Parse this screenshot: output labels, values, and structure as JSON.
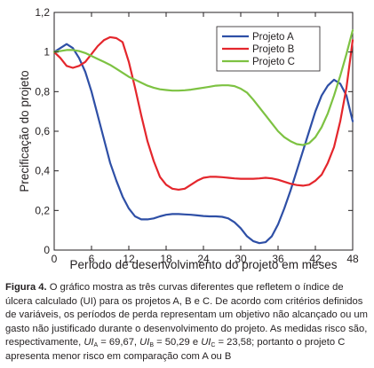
{
  "chart_data": {
    "type": "line",
    "xlabel": "Período de desenvolvimento do projeto em meses",
    "ylabel": "Precificação do projeto",
    "xlim": [
      0,
      48
    ],
    "ylim": [
      0,
      1.2
    ],
    "xticks": [
      0,
      6,
      12,
      18,
      24,
      30,
      36,
      42,
      48
    ],
    "yticks": [
      0,
      0.2,
      0.4,
      0.6,
      0.8,
      1,
      1.2
    ],
    "xtick_labels": [
      "0",
      "6",
      "12",
      "18",
      "24",
      "30",
      "36",
      "42",
      "48"
    ],
    "ytick_labels": [
      "0",
      "0,2",
      "0,4",
      "0,6",
      "0,8",
      "1",
      "1,2"
    ],
    "grid": false,
    "legend_position": "top-right",
    "series": [
      {
        "name": "Projeto A",
        "color": "#2e4fa6",
        "x": [
          0,
          1,
          2,
          3,
          4,
          5,
          6,
          7,
          8,
          9,
          10,
          11,
          12,
          13,
          14,
          15,
          16,
          17,
          18,
          19,
          20,
          21,
          22,
          23,
          24,
          25,
          26,
          27,
          28,
          29,
          30,
          31,
          32,
          33,
          34,
          35,
          36,
          37,
          38,
          39,
          40,
          41,
          42,
          43,
          44,
          45,
          46,
          47,
          48
        ],
        "y": [
          1.0,
          1.02,
          1.04,
          1.02,
          0.97,
          0.9,
          0.8,
          0.68,
          0.56,
          0.44,
          0.35,
          0.27,
          0.21,
          0.17,
          0.155,
          0.155,
          0.16,
          0.17,
          0.178,
          0.182,
          0.182,
          0.18,
          0.178,
          0.175,
          0.172,
          0.17,
          0.17,
          0.168,
          0.16,
          0.14,
          0.11,
          0.07,
          0.045,
          0.035,
          0.04,
          0.07,
          0.13,
          0.21,
          0.3,
          0.4,
          0.5,
          0.6,
          0.7,
          0.78,
          0.83,
          0.86,
          0.84,
          0.78,
          0.65
        ]
      },
      {
        "name": "Projeto B",
        "color": "#e4262c",
        "x": [
          0,
          1,
          2,
          3,
          4,
          5,
          6,
          7,
          8,
          9,
          10,
          11,
          12,
          13,
          14,
          15,
          16,
          17,
          18,
          19,
          20,
          21,
          22,
          23,
          24,
          25,
          26,
          27,
          28,
          29,
          30,
          31,
          32,
          33,
          34,
          35,
          36,
          37,
          38,
          39,
          40,
          41,
          42,
          43,
          44,
          45,
          46,
          47,
          48
        ],
        "y": [
          1.0,
          0.97,
          0.93,
          0.92,
          0.93,
          0.95,
          0.99,
          1.03,
          1.06,
          1.075,
          1.07,
          1.05,
          0.95,
          0.82,
          0.68,
          0.55,
          0.45,
          0.37,
          0.33,
          0.31,
          0.305,
          0.31,
          0.33,
          0.35,
          0.365,
          0.37,
          0.37,
          0.368,
          0.365,
          0.362,
          0.36,
          0.36,
          0.36,
          0.362,
          0.365,
          0.362,
          0.355,
          0.345,
          0.335,
          0.328,
          0.325,
          0.33,
          0.35,
          0.38,
          0.44,
          0.52,
          0.65,
          0.82,
          1.06
        ]
      },
      {
        "name": "Projeto C",
        "color": "#7dc242",
        "x": [
          0,
          1,
          2,
          3,
          4,
          5,
          6,
          7,
          8,
          9,
          10,
          11,
          12,
          13,
          14,
          15,
          16,
          17,
          18,
          19,
          20,
          21,
          22,
          23,
          24,
          25,
          26,
          27,
          28,
          29,
          30,
          31,
          32,
          33,
          34,
          35,
          36,
          37,
          38,
          39,
          40,
          41,
          42,
          43,
          44,
          45,
          46,
          47,
          48
        ],
        "y": [
          1.0,
          1.005,
          1.01,
          1.01,
          1.005,
          0.995,
          0.98,
          0.965,
          0.95,
          0.935,
          0.915,
          0.895,
          0.875,
          0.86,
          0.845,
          0.83,
          0.82,
          0.812,
          0.808,
          0.805,
          0.805,
          0.807,
          0.81,
          0.815,
          0.82,
          0.825,
          0.83,
          0.832,
          0.832,
          0.828,
          0.815,
          0.795,
          0.76,
          0.72,
          0.68,
          0.64,
          0.6,
          0.57,
          0.55,
          0.535,
          0.53,
          0.54,
          0.57,
          0.62,
          0.69,
          0.78,
          0.88,
          0.99,
          1.11
        ]
      }
    ]
  },
  "caption": {
    "label": "Figura 4.",
    "t1": " O gráfico mostra as três curvas diferentes que refletem o índice de úlcera calculado (UI) para os projetos A, B e C. De acordo com critérios definidos de variáveis, os períodos de perda representam um objetivo não alcançado ou um gasto não justificado durante o desenvolvimento do projeto. As medidas risco são, respectivamente, ",
    "uia_base": "UI",
    "uia_sub": "A",
    "uia_val": " = 69,67, ",
    "uib_base": "UI",
    "uib_sub": "B",
    "uib_val": " = 50,29 e ",
    "uic_base": "UI",
    "uic_sub": "C",
    "uic_val": " = 23,58; portanto o projeto C apresenta menor risco em comparação com A ou B"
  }
}
